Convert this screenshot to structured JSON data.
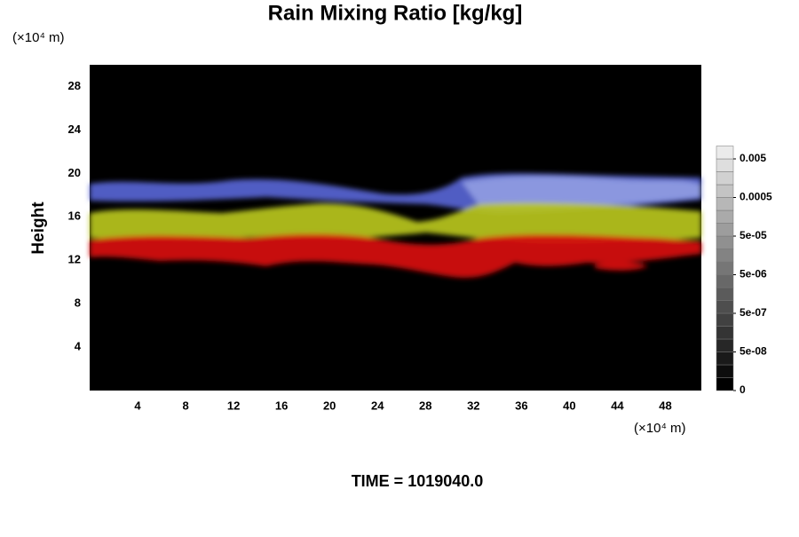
{
  "chart_data": {
    "type": "volume-render",
    "title": "Rain Mixing Ratio [kg/kg]",
    "y_label": "Height",
    "y_unit": "(×10⁴ m)",
    "x_unit": "(×10⁴ m)",
    "footer": "TIME = 1019040.0",
    "xlim": [
      0,
      51
    ],
    "xticks": [
      4,
      8,
      12,
      16,
      20,
      24,
      28,
      32,
      36,
      40,
      44,
      48
    ],
    "ylim": [
      0,
      30
    ],
    "yticks": [
      4,
      8,
      12,
      16,
      20,
      24,
      28
    ],
    "colorbar_ticks": [
      0,
      {
        "value": 5e-08,
        "label": "5e-08"
      },
      {
        "value": 5e-07,
        "label": "5e-07"
      },
      {
        "value": 5e-06,
        "label": "5e-06"
      },
      {
        "value": 5e-05,
        "label": "5e-05"
      },
      0.0005,
      0.005
    ]
  }
}
